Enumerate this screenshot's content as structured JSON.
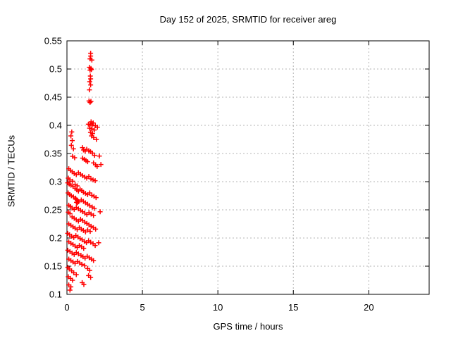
{
  "chart": {
    "title": "Day 152 of 2025, SRMTID for receiver areg",
    "xlabel": "GPS time / hours",
    "ylabel": "SRMTID / TECUs"
  },
  "style": {
    "background": "#ffffff",
    "axis_color": "#000000",
    "text_color": "#000000",
    "grid_color": "#b4b4b4",
    "marker_color": "#ff0000"
  },
  "chart_data": {
    "type": "scatter",
    "title": "Day 152 of 2025, SRMTID for receiver areg",
    "xlabel": "GPS time / hours",
    "ylabel": "SRMTID / TECUs",
    "xlim": [
      0,
      24
    ],
    "ylim": [
      0.1,
      0.55
    ],
    "xticks": [
      0,
      5,
      10,
      15,
      20
    ],
    "xtick_labels": [
      "0",
      "5",
      "10",
      "15",
      "20"
    ],
    "yticks": [
      0.1,
      0.15,
      0.2,
      0.25,
      0.3,
      0.35,
      0.4,
      0.45,
      0.5,
      0.55
    ],
    "ytick_labels": [
      "0.1",
      "0.15",
      "0.2",
      "0.25",
      "0.3",
      "0.35",
      "0.4",
      "0.45",
      "0.5",
      "0.55"
    ],
    "grid": true,
    "legend": "none",
    "marker": {
      "shape": "plus",
      "color": "#ff0000",
      "size": 7
    },
    "series": [
      {
        "name": "SRMTID",
        "color": "#ff0000",
        "points": [
          [
            1.57,
            0.528
          ],
          [
            1.57,
            0.523
          ],
          [
            1.53,
            0.518
          ],
          [
            1.65,
            0.516
          ],
          [
            1.49,
            0.503
          ],
          [
            1.59,
            0.501
          ],
          [
            1.53,
            0.498
          ],
          [
            1.62,
            0.499
          ],
          [
            1.55,
            0.4875
          ],
          [
            1.57,
            0.4825
          ],
          [
            1.51,
            0.4775
          ],
          [
            1.57,
            0.4717
          ],
          [
            1.49,
            0.463
          ],
          [
            1.46,
            0.4433
          ],
          [
            1.59,
            0.4425
          ],
          [
            1.53,
            0.4408
          ],
          [
            1.6,
            0.4063
          ],
          [
            1.74,
            0.4042
          ],
          [
            1.42,
            0.4021
          ],
          [
            1.53,
            0.4008
          ],
          [
            1.67,
            0.4
          ],
          [
            1.88,
            0.3992
          ],
          [
            2.02,
            0.3967
          ],
          [
            1.5,
            0.395
          ],
          [
            1.64,
            0.3938
          ],
          [
            1.81,
            0.3917
          ],
          [
            1.56,
            0.3875
          ],
          [
            1.7,
            0.3854
          ],
          [
            1.63,
            0.3813
          ],
          [
            1.77,
            0.3783
          ],
          [
            1.95,
            0.375
          ],
          [
            0.32,
            0.3883
          ],
          [
            0.26,
            0.3813
          ],
          [
            0.35,
            0.373
          ],
          [
            0.29,
            0.3646
          ],
          [
            0.43,
            0.3583
          ],
          [
            1.03,
            0.3604
          ],
          [
            1.1,
            0.3563
          ],
          [
            1.21,
            0.3542
          ],
          [
            1.31,
            0.3575
          ],
          [
            1.45,
            0.355
          ],
          [
            1.56,
            0.3533
          ],
          [
            1.69,
            0.3508
          ],
          [
            1.83,
            0.3467
          ],
          [
            0.37,
            0.345
          ],
          [
            0.51,
            0.3425
          ],
          [
            1.04,
            0.3417
          ],
          [
            1.15,
            0.3396
          ],
          [
            1.26,
            0.3375
          ],
          [
            1.37,
            0.3354
          ],
          [
            1.76,
            0.3333
          ],
          [
            1.9,
            0.33
          ],
          [
            2.15,
            0.3455
          ],
          [
            2.0,
            0.3271
          ],
          [
            2.25,
            0.3305
          ],
          [
            0.12,
            0.3229
          ],
          [
            0.23,
            0.32
          ],
          [
            0.35,
            0.3175
          ],
          [
            0.48,
            0.3146
          ],
          [
            0.62,
            0.3125
          ],
          [
            0.76,
            0.3158
          ],
          [
            0.9,
            0.3133
          ],
          [
            1.04,
            0.3104
          ],
          [
            1.18,
            0.3083
          ],
          [
            1.31,
            0.3063
          ],
          [
            1.45,
            0.3092
          ],
          [
            1.59,
            0.305
          ],
          [
            1.73,
            0.3033
          ],
          [
            1.87,
            0.3017
          ],
          [
            0.09,
            0.3063
          ],
          [
            0.19,
            0.3033
          ],
          [
            0.37,
            0.3008
          ],
          [
            0.05,
            0.2979
          ],
          [
            0.15,
            0.2958
          ],
          [
            0.26,
            0.2938
          ],
          [
            0.4,
            0.2917
          ],
          [
            0.54,
            0.295
          ],
          [
            0.68,
            0.2925
          ],
          [
            0.54,
            0.2883
          ],
          [
            0.65,
            0.2854
          ],
          [
            0.76,
            0.2833
          ],
          [
            0.87,
            0.2867
          ],
          [
            0.98,
            0.2842
          ],
          [
            1.09,
            0.2813
          ],
          [
            1.23,
            0.2792
          ],
          [
            1.37,
            0.2771
          ],
          [
            1.51,
            0.28
          ],
          [
            1.65,
            0.2758
          ],
          [
            1.79,
            0.2742
          ],
          [
            1.93,
            0.2717
          ],
          [
            0.08,
            0.28
          ],
          [
            0.17,
            0.2771
          ],
          [
            0.29,
            0.275
          ],
          [
            0.43,
            0.2729
          ],
          [
            0.57,
            0.2708
          ],
          [
            0.6,
            0.2688
          ],
          [
            0.68,
            0.2667
          ],
          [
            0.76,
            0.2646
          ],
          [
            0.63,
            0.2633
          ],
          [
            0.71,
            0.2625
          ],
          [
            0.95,
            0.2675
          ],
          [
            1.09,
            0.265
          ],
          [
            1.23,
            0.2625
          ],
          [
            1.37,
            0.26
          ],
          [
            1.51,
            0.2575
          ],
          [
            1.67,
            0.255
          ],
          [
            1.81,
            0.2525
          ],
          [
            0.12,
            0.2583
          ],
          [
            0.23,
            0.2558
          ],
          [
            0.34,
            0.2533
          ],
          [
            0.48,
            0.2508
          ],
          [
            0.62,
            0.2542
          ],
          [
            0.76,
            0.2517
          ],
          [
            0.9,
            0.2492
          ],
          [
            1.04,
            0.2467
          ],
          [
            1.18,
            0.2442
          ],
          [
            1.32,
            0.2417
          ],
          [
            1.46,
            0.245
          ],
          [
            1.6,
            0.2425
          ],
          [
            1.76,
            0.24
          ],
          [
            0.09,
            0.2458
          ],
          [
            0.2,
            0.2433
          ],
          [
            2.2,
            0.2465
          ],
          [
            0.34,
            0.2375
          ],
          [
            0.48,
            0.235
          ],
          [
            0.62,
            0.2325
          ],
          [
            0.76,
            0.23
          ],
          [
            0.9,
            0.2333
          ],
          [
            1.04,
            0.2308
          ],
          [
            1.18,
            0.2283
          ],
          [
            1.32,
            0.2258
          ],
          [
            1.46,
            0.2233
          ],
          [
            1.6,
            0.2208
          ],
          [
            1.75,
            0.2183
          ],
          [
            1.9,
            0.2158
          ],
          [
            0.12,
            0.225
          ],
          [
            0.26,
            0.2225
          ],
          [
            0.4,
            0.22
          ],
          [
            0.54,
            0.2175
          ],
          [
            0.68,
            0.215
          ],
          [
            0.82,
            0.2183
          ],
          [
            0.95,
            0.2158
          ],
          [
            1.09,
            0.2133
          ],
          [
            1.23,
            0.2108
          ],
          [
            1.37,
            0.2142
          ],
          [
            1.54,
            0.2117
          ],
          [
            0.05,
            0.2083
          ],
          [
            0.17,
            0.2058
          ],
          [
            0.31,
            0.2033
          ],
          [
            0.45,
            0.2008
          ],
          [
            0.59,
            0.2042
          ],
          [
            0.73,
            0.2017
          ],
          [
            0.87,
            0.1992
          ],
          [
            1.01,
            0.1967
          ],
          [
            1.15,
            0.1942
          ],
          [
            1.29,
            0.1917
          ],
          [
            1.43,
            0.195
          ],
          [
            1.57,
            0.1925
          ],
          [
            1.73,
            0.19
          ],
          [
            1.87,
            0.1867
          ],
          [
            0.12,
            0.1933
          ],
          [
            0.26,
            0.1908
          ],
          [
            0.4,
            0.1883
          ],
          [
            0.54,
            0.1858
          ],
          [
            0.68,
            0.1833
          ],
          [
            0.82,
            0.1867
          ],
          [
            0.97,
            0.1842
          ],
          [
            1.11,
            0.1817
          ],
          [
            2.1,
            0.1915
          ],
          [
            0.06,
            0.1783
          ],
          [
            0.2,
            0.1758
          ],
          [
            0.34,
            0.1733
          ],
          [
            0.48,
            0.1708
          ],
          [
            0.62,
            0.1742
          ],
          [
            0.76,
            0.1717
          ],
          [
            0.93,
            0.1692
          ],
          [
            1.06,
            0.1667
          ],
          [
            1.2,
            0.1642
          ],
          [
            1.34,
            0.1675
          ],
          [
            1.48,
            0.165
          ],
          [
            1.62,
            0.1625
          ],
          [
            1.76,
            0.16
          ],
          [
            0.12,
            0.1625
          ],
          [
            0.26,
            0.16
          ],
          [
            0.4,
            0.1575
          ],
          [
            0.54,
            0.155
          ],
          [
            0.7,
            0.1583
          ],
          [
            0.84,
            0.1558
          ],
          [
            0.99,
            0.1533
          ],
          [
            1.17,
            0.1508
          ],
          [
            0.06,
            0.1479
          ],
          [
            0.15,
            0.145
          ],
          [
            0.31,
            0.1417
          ],
          [
            0.45,
            0.1383
          ],
          [
            0.62,
            0.135
          ],
          [
            1.37,
            0.1458
          ],
          [
            1.51,
            0.1425
          ],
          [
            0.09,
            0.1313
          ],
          [
            0.23,
            0.1283
          ],
          [
            0.37,
            0.125
          ],
          [
            1.43,
            0.1333
          ],
          [
            1.57,
            0.13
          ],
          [
            0.12,
            0.1167
          ],
          [
            0.26,
            0.1133
          ],
          [
            1.01,
            0.1208
          ],
          [
            1.12,
            0.1175
          ],
          [
            0.2,
            0.1075
          ]
        ]
      }
    ]
  }
}
